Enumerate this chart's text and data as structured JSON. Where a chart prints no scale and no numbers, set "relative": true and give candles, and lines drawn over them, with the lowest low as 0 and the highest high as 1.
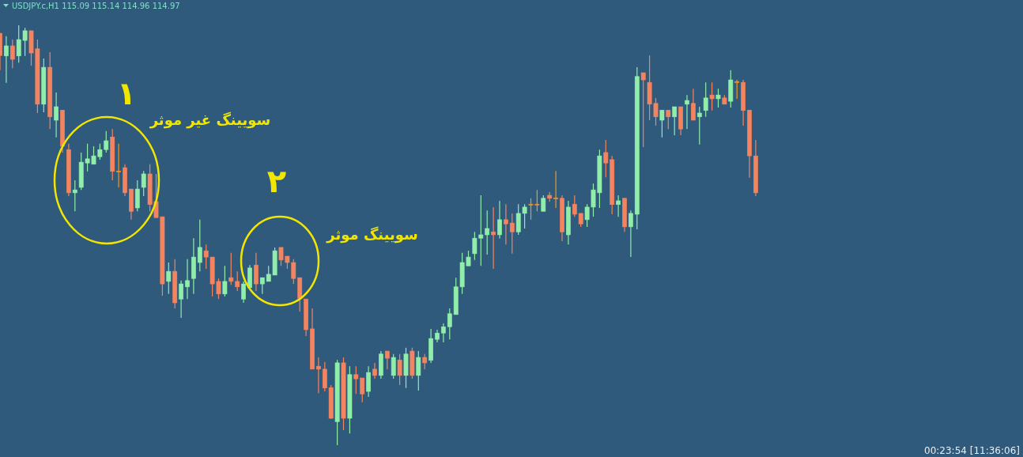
{
  "chart_data": {
    "type": "candlestick",
    "title": "USDJPY.c,H1  115.09 115.14 114.96 114.97",
    "relative": true,
    "categories": [
      null,
      null,
      null,
      null,
      null,
      null,
      null,
      null,
      null,
      null,
      null,
      null,
      null,
      null,
      null,
      null,
      null,
      null,
      null,
      null,
      null,
      null,
      null,
      null,
      null,
      null,
      null,
      null,
      null,
      null,
      null,
      null,
      null,
      null,
      null,
      null,
      null,
      null,
      null,
      null,
      null,
      null,
      null,
      null,
      null,
      null,
      null,
      null,
      null,
      null,
      null,
      null,
      null,
      null,
      null,
      null,
      null,
      null,
      null,
      null,
      null,
      null,
      null,
      null,
      null,
      null,
      null,
      null,
      null,
      null,
      null,
      null,
      null,
      null,
      null,
      null,
      null,
      null,
      null,
      null,
      null,
      null,
      null,
      null,
      null,
      null,
      null,
      null,
      null,
      null,
      null,
      null,
      null,
      null,
      null,
      null,
      null,
      null,
      null,
      null,
      null,
      null,
      null,
      null,
      null,
      null,
      null,
      null,
      null,
      null,
      null,
      null,
      null,
      null,
      null,
      null,
      null,
      null,
      null,
      null,
      null,
      null
    ],
    "ohlc": [
      [
        0.981,
        0.981,
        0.893,
        0.928
      ],
      [
        0.927,
        0.974,
        0.863,
        0.951
      ],
      [
        0.951,
        0.966,
        0.898,
        0.919
      ],
      [
        0.927,
        1,
        0.911,
        0.966
      ],
      [
        0.964,
        0.994,
        0.927,
        0.987
      ],
      [
        0.987,
        0.987,
        0.904,
        0.934
      ],
      [
        0.944,
        0.966,
        0.791,
        0.812
      ],
      [
        0.812,
        0.921,
        0.793,
        0.9
      ],
      [
        0.9,
        0.936,
        0.753,
        0.782
      ],
      [
        0.774,
        0.84,
        0.733,
        0.806
      ],
      [
        0.798,
        0.798,
        0.697,
        0.712
      ],
      [
        0.704,
        0.718,
        0.593,
        0.601
      ],
      [
        0.601,
        0.631,
        0.557,
        0.608
      ],
      [
        0.614,
        0.697,
        0.608,
        0.674
      ],
      [
        0.672,
        0.718,
        0.652,
        0.682
      ],
      [
        0.669,
        0.712,
        0.669,
        0.689
      ],
      [
        0.687,
        0.718,
        0.68,
        0.704
      ],
      [
        0.704,
        0.748,
        0.697,
        0.725
      ],
      [
        0.734,
        0.753,
        0.631,
        0.652
      ],
      [
        0.653,
        0.718,
        0.614,
        0.652
      ],
      [
        0.661,
        0.669,
        0.593,
        0.601
      ],
      [
        0.61,
        0.61,
        0.537,
        0.557
      ],
      [
        0.565,
        0.631,
        0.557,
        0.61
      ],
      [
        0.614,
        0.653,
        0.593,
        0.646
      ],
      [
        0.646,
        0.669,
        0.557,
        0.573
      ],
      [
        0.58,
        0.646,
        0.542,
        0.542
      ],
      [
        0.544,
        0.544,
        0.356,
        0.384
      ],
      [
        0.39,
        0.435,
        0.36,
        0.414
      ],
      [
        0.414,
        0.443,
        0.326,
        0.339
      ],
      [
        0.348,
        0.392,
        0.303,
        0.384
      ],
      [
        0.377,
        0.443,
        0.348,
        0.392
      ],
      [
        0.397,
        0.493,
        0.36,
        0.448
      ],
      [
        0.435,
        0.537,
        0.414,
        0.471
      ],
      [
        0.463,
        0.478,
        0.42,
        0.448
      ],
      [
        0.448,
        0.448,
        0.354,
        0.384
      ],
      [
        0.39,
        0.397,
        0.348,
        0.36
      ],
      [
        0.36,
        0.427,
        0.354,
        0.39
      ],
      [
        0.399,
        0.458,
        0.382,
        0.39
      ],
      [
        0.39,
        0.414,
        0.367,
        0.377
      ],
      [
        0.348,
        0.39,
        0.339,
        0.384
      ],
      [
        0.375,
        0.429,
        0.375,
        0.422
      ],
      [
        0.429,
        0.458,
        0.367,
        0.384
      ],
      [
        0.384,
        0.399,
        0.36,
        0.399
      ],
      [
        0.39,
        0.427,
        0.39,
        0.407
      ],
      [
        0.405,
        0.471,
        0.405,
        0.463
      ],
      [
        0.471,
        0.471,
        0.427,
        0.441
      ],
      [
        0.45,
        0.45,
        0.42,
        0.435
      ],
      [
        0.435,
        0.443,
        0.384,
        0.397
      ],
      [
        0.399,
        0.399,
        0.318,
        0.35
      ],
      [
        0.348,
        0.348,
        0.26,
        0.275
      ],
      [
        0.277,
        0.326,
        0.181,
        0.181
      ],
      [
        0.188,
        0.209,
        0.124,
        0.181
      ],
      [
        0.181,
        0.198,
        0.128,
        0.136
      ],
      [
        0.137,
        0.143,
        0.062,
        0.064
      ],
      [
        0.056,
        0.203,
        0,
        0.196
      ],
      [
        0.196,
        0.209,
        0.036,
        0.064
      ],
      [
        0.064,
        0.188,
        0.028,
        0.168
      ],
      [
        0.168,
        0.188,
        0.122,
        0.158
      ],
      [
        0.16,
        0.16,
        0.102,
        0.122
      ],
      [
        0.128,
        0.188,
        0.115,
        0.173
      ],
      [
        0.181,
        0.196,
        0.158,
        0.166
      ],
      [
        0.166,
        0.224,
        0.158,
        0.217
      ],
      [
        0.224,
        0.224,
        0.181,
        0.207
      ],
      [
        0.166,
        0.217,
        0.158,
        0.209
      ],
      [
        0.203,
        0.217,
        0.143,
        0.166
      ],
      [
        0.166,
        0.232,
        0.136,
        0.217
      ],
      [
        0.224,
        0.232,
        0.158,
        0.166
      ],
      [
        0.166,
        0.224,
        0.13,
        0.209
      ],
      [
        0.209,
        0.217,
        0.181,
        0.196
      ],
      [
        0.202,
        0.277,
        0.196,
        0.254
      ],
      [
        0.252,
        0.275,
        0.245,
        0.267
      ],
      [
        0.267,
        0.29,
        0.245,
        0.282
      ],
      [
        0.282,
        0.326,
        0.252,
        0.313
      ],
      [
        0.311,
        0.399,
        0.311,
        0.377
      ],
      [
        0.377,
        0.458,
        0.36,
        0.435
      ],
      [
        0.427,
        0.463,
        0.427,
        0.448
      ],
      [
        0.456,
        0.508,
        0.441,
        0.493
      ],
      [
        0.493,
        0.595,
        0.427,
        0.501
      ],
      [
        0.501,
        0.559,
        0.454,
        0.516
      ],
      [
        0.508,
        0.567,
        0.42,
        0.501
      ],
      [
        0.501,
        0.582,
        0.492,
        0.537
      ],
      [
        0.537,
        0.574,
        0.478,
        0.527
      ],
      [
        0.529,
        0.552,
        0.456,
        0.508
      ],
      [
        0.508,
        0.574,
        0.501,
        0.552
      ],
      [
        0.552,
        0.574,
        0.516,
        0.567
      ],
      [
        0.574,
        0.588,
        0.537,
        0.573
      ],
      [
        0.574,
        0.608,
        0.557,
        0.573
      ],
      [
        0.557,
        0.595,
        0.557,
        0.588
      ],
      [
        0.595,
        0.603,
        0.58,
        0.588
      ],
      [
        0.589,
        0.653,
        0.565,
        0.588
      ],
      [
        0.588,
        0.595,
        0.486,
        0.508
      ],
      [
        0.501,
        0.582,
        0.478,
        0.567
      ],
      [
        0.574,
        0.595,
        0.544,
        0.55
      ],
      [
        0.552,
        0.552,
        0.52,
        0.527
      ],
      [
        0.537,
        0.574,
        0.52,
        0.567
      ],
      [
        0.567,
        0.623,
        0.544,
        0.608
      ],
      [
        0.601,
        0.704,
        0.565,
        0.689
      ],
      [
        0.697,
        0.727,
        0.638,
        0.672
      ],
      [
        0.68,
        0.689,
        0.55,
        0.573
      ],
      [
        0.573,
        0.595,
        0.544,
        0.582
      ],
      [
        0.588,
        0.588,
        0.508,
        0.52
      ],
      [
        0.52,
        0.559,
        0.448,
        0.552
      ],
      [
        0.55,
        0.9,
        0.514,
        0.878
      ],
      [
        0.887,
        0.887,
        0.71,
        0.87
      ],
      [
        0.864,
        0.928,
        0.774,
        0.812
      ],
      [
        0.814,
        0.827,
        0.761,
        0.782
      ],
      [
        0.774,
        0.798,
        0.733,
        0.798
      ],
      [
        0.798,
        0.798,
        0.753,
        0.782
      ],
      [
        0.782,
        0.806,
        0.738,
        0.806
      ],
      [
        0.806,
        0.806,
        0.738,
        0.753
      ],
      [
        0.812,
        0.834,
        0.753,
        0.821
      ],
      [
        0.814,
        0.849,
        0.774,
        0.774
      ],
      [
        0.782,
        0.806,
        0.716,
        0.791
      ],
      [
        0.797,
        0.864,
        0.782,
        0.827
      ],
      [
        0.834,
        0.864,
        0.797,
        0.825
      ],
      [
        0.825,
        0.849,
        0.804,
        0.834
      ],
      [
        0.827,
        0.834,
        0.812,
        0.812
      ],
      [
        0.819,
        0.893,
        0.804,
        0.87
      ],
      [
        0.866,
        0.87,
        0.825,
        0.864
      ],
      [
        0.864,
        0.87,
        0.761,
        0.797
      ],
      [
        0.798,
        0.798,
        0.637,
        0.689
      ],
      [
        0.689,
        0.727,
        0.593,
        0.601
      ]
    ],
    "colors": [
      "#f4845f",
      "#90eeaa",
      "#f4845f",
      "#90eeaa",
      "#90eeaa",
      "#f4845f",
      "#f4845f",
      "#90eeaa",
      "#f4845f",
      "#90eeaa",
      "#f4845f",
      "#f4845f",
      "#90eeaa",
      "#90eeaa",
      "#90eeaa",
      "#90eeaa",
      "#90eeaa",
      "#90eeaa",
      "#f4845f",
      "#f7931e",
      "#f4845f",
      "#f4845f",
      "#90eeaa",
      "#90eeaa",
      "#f4845f",
      "#f4845f",
      "#f4845f",
      "#90eeaa",
      "#f4845f",
      "#90eeaa",
      "#90eeaa",
      "#90eeaa",
      "#90eeaa",
      "#f4845f",
      "#f4845f",
      "#f4845f",
      "#90eeaa",
      "#f4845f",
      "#f4845f",
      "#90eeaa",
      "#90eeaa",
      "#f4845f",
      "#90eeaa",
      "#90eeaa",
      "#90eeaa",
      "#f4845f",
      "#f4845f",
      "#f4845f",
      "#f4845f",
      "#f4845f",
      "#f4845f",
      "#f4845f",
      "#f4845f",
      "#f4845f",
      "#90eeaa",
      "#f4845f",
      "#90eeaa",
      "#f4845f",
      "#f4845f",
      "#90eeaa",
      "#f4845f",
      "#90eeaa",
      "#f4845f",
      "#90eeaa",
      "#f4845f",
      "#90eeaa",
      "#f4845f",
      "#90eeaa",
      "#f4845f",
      "#90eeaa",
      "#90eeaa",
      "#90eeaa",
      "#90eeaa",
      "#90eeaa",
      "#90eeaa",
      "#90eeaa",
      "#90eeaa",
      "#90eeaa",
      "#90eeaa",
      "#f4845f",
      "#90eeaa",
      "#f4845f",
      "#f4845f",
      "#90eeaa",
      "#90eeaa",
      "#f7931e",
      "#f7931e",
      "#90eeaa",
      "#f4845f",
      "#f7931e",
      "#f4845f",
      "#90eeaa",
      "#f4845f",
      "#f4845f",
      "#90eeaa",
      "#90eeaa",
      "#90eeaa",
      "#f4845f",
      "#f4845f",
      "#90eeaa",
      "#f4845f",
      "#90eeaa",
      "#90eeaa",
      "#f4845f",
      "#f4845f",
      "#f4845f",
      "#90eeaa",
      "#f4845f",
      "#90eeaa",
      "#f4845f",
      "#90eeaa",
      "#f4845f",
      "#90eeaa",
      "#90eeaa",
      "#f4845f",
      "#90eeaa",
      "#f4845f",
      "#90eeaa",
      "#f7931e",
      "#f4845f",
      "#f4845f",
      "#f4845f"
    ],
    "annotations": [
      "۱",
      "سویینگ غیر موثر",
      "۲",
      "سویینگ موثر",
      "00:23:54 [11:36:06]"
    ]
  }
}
